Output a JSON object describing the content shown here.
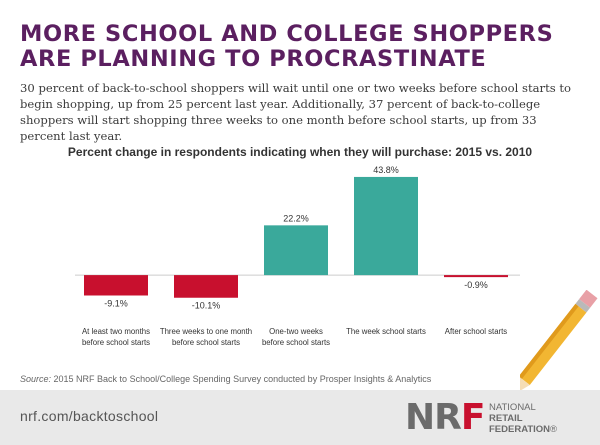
{
  "headline": {
    "line1": "More School and College Shoppers",
    "line2": "Are Planning to Procrastinate"
  },
  "intro": "30 percent of back-to-school shoppers will wait until one or two weeks before school starts to begin shopping, up from 25 percent last year. Additionally, 37 percent of back-to-college shoppers will start shopping three weeks to one month before school starts, up from 33 percent last year.",
  "chart_data": {
    "type": "bar",
    "title": "Percent change in respondents indicating when they will purchase: 2015 vs. 2010",
    "categories": [
      [
        "At least two months",
        "before school starts"
      ],
      [
        "Three weeks to one month",
        "before school starts"
      ],
      [
        "One-two weeks",
        "before school starts"
      ],
      [
        "The week school starts"
      ],
      [
        "After school starts"
      ]
    ],
    "values": [
      -9.1,
      -10.1,
      22.2,
      43.8,
      -0.9
    ],
    "value_labels": [
      "-9.1%",
      "-10.1%",
      "22.2%",
      "43.8%",
      "-0.9%"
    ],
    "ylim": [
      -12,
      46
    ],
    "colors": {
      "positive": "#3aa99b",
      "negative": "#c8102e"
    },
    "grid": false,
    "xlabel": "",
    "ylabel": ""
  },
  "source": {
    "label": "Source:",
    "text": " 2015 NRF Back to School/College Spending Survey conducted by Prosper Insights & Analytics"
  },
  "footer": {
    "url": "nrf.com/backtoschool",
    "logo": {
      "letters_a": "NR",
      "letters_b": "F",
      "line1": "NATIONAL",
      "line2": "RETAIL",
      "line3": "FEDERATION",
      "mark": "®"
    }
  },
  "colors": {
    "headline": "#5b1f60",
    "brand_red": "#c8102e",
    "teal": "#3aa99b"
  }
}
